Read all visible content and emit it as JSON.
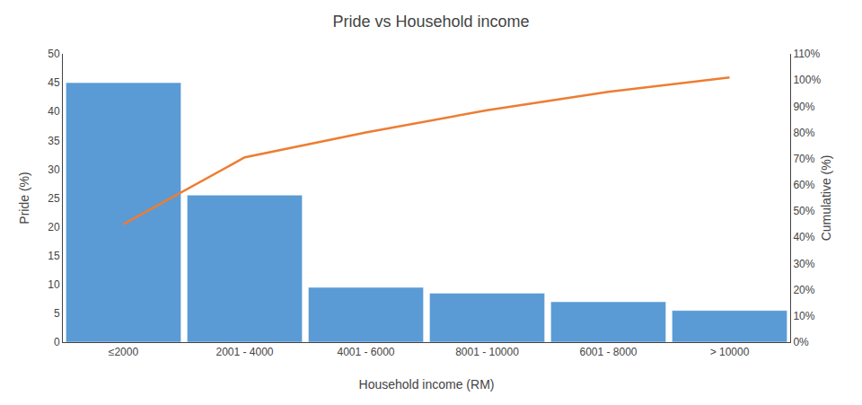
{
  "chart_data": {
    "type": "bar",
    "title": "Pride vs Household income",
    "xlabel": "Household income (RM)",
    "ylabel": "Pride (%)",
    "y2label": "Cumulative (%)",
    "categories": [
      "≤2000",
      "2001 - 4000",
      "4001 - 6000",
      "8001 - 10000",
      "6001 - 8000",
      "> 10000"
    ],
    "series": [
      {
        "type": "bar",
        "color": "#5B9BD5",
        "values": [
          45,
          25.5,
          9.5,
          8.5,
          7,
          5.5
        ]
      },
      {
        "type": "line",
        "axis": "y2",
        "color": "#ED7D31",
        "values": [
          45,
          70.5,
          80,
          88.5,
          95.5,
          101
        ]
      }
    ],
    "ylim": [
      0,
      50
    ],
    "yticks": [
      0,
      5,
      10,
      15,
      20,
      25,
      30,
      35,
      40,
      45,
      50
    ],
    "y2lim": [
      0,
      110
    ],
    "y2ticks": [
      {
        "value": 0,
        "label": "0%"
      },
      {
        "value": 10,
        "label": "10%"
      },
      {
        "value": 20,
        "label": "20%"
      },
      {
        "value": 30,
        "label": "30%"
      },
      {
        "value": 40,
        "label": "40%"
      },
      {
        "value": 50,
        "label": "50%"
      },
      {
        "value": 60,
        "label": "60%"
      },
      {
        "value": 70,
        "label": "70%"
      },
      {
        "value": 80,
        "label": "80%"
      },
      {
        "value": 90,
        "label": "90%"
      },
      {
        "value": 100,
        "label": "100%"
      },
      {
        "value": 110,
        "label": "110%"
      }
    ],
    "grid": false
  }
}
